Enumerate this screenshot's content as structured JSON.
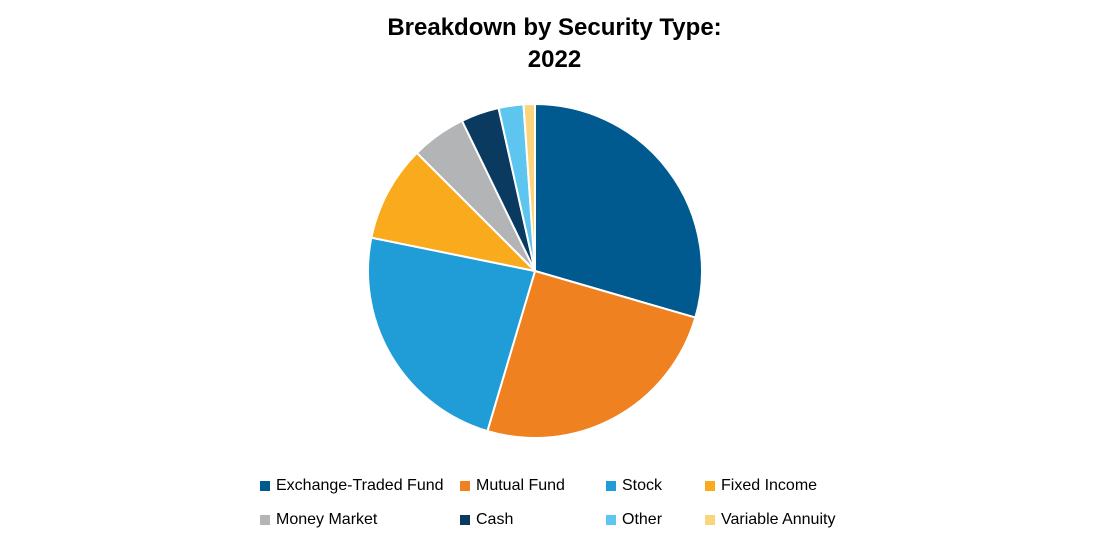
{
  "chart_data": {
    "type": "pie",
    "title_lines": [
      "Breakdown by Security Type:",
      "2022"
    ],
    "slices": [
      {
        "label": "Exchange-Traded Fund",
        "value": 29.5,
        "color": "#005a8f"
      },
      {
        "label": "Mutual Fund",
        "value": 25.1,
        "color": "#ef8121"
      },
      {
        "label": "Stock",
        "value": 23.6,
        "color": "#209dd7"
      },
      {
        "label": "Fixed Income",
        "value": 9.3,
        "color": "#f9aa1d"
      },
      {
        "label": "Money Market",
        "value": 5.3,
        "color": "#b2b4b6"
      },
      {
        "label": "Cash",
        "value": 3.7,
        "color": "#0a3a5f"
      },
      {
        "label": "Other",
        "value": 2.4,
        "color": "#5ec6ee"
      },
      {
        "label": "Variable Annuity",
        "value": 1.1,
        "color": "#fad57e"
      }
    ],
    "legend_position": "bottom"
  }
}
